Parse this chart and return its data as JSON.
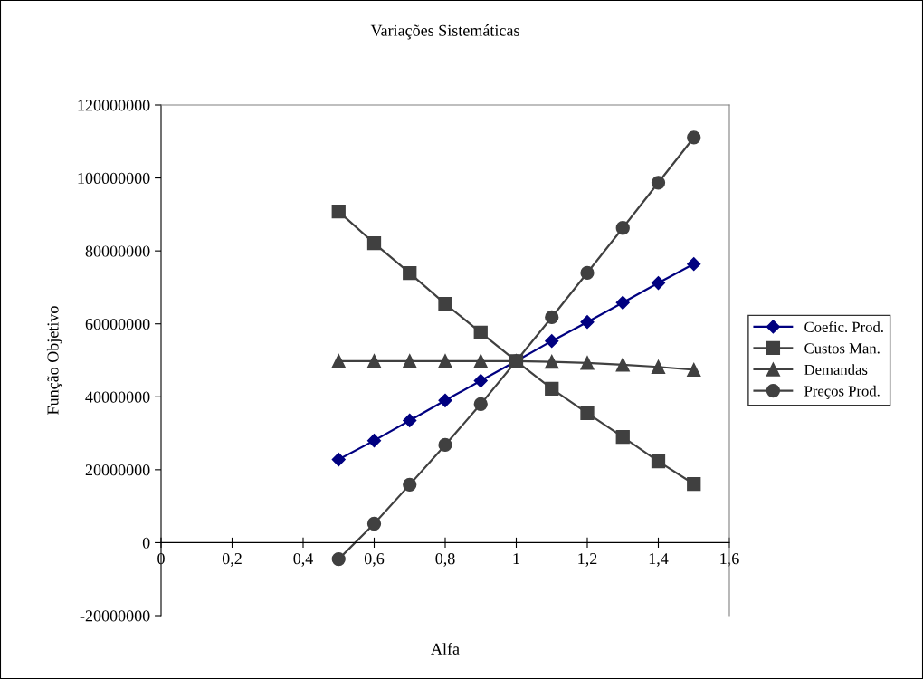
{
  "chart_data": {
    "type": "line",
    "title": "Variações Sistemáticas",
    "xlabel": "Alfa",
    "ylabel": "Função Objetivo",
    "x": [
      0.5,
      0.6,
      0.7,
      0.8,
      0.9,
      1.0,
      1.1,
      1.2,
      1.3,
      1.4,
      1.5
    ],
    "series": [
      {
        "name": "Coefic. Prod.",
        "color": "#000080",
        "marker": "diamond",
        "values": [
          22800000,
          28000000,
          33500000,
          39000000,
          44400000,
          49800000,
          55300000,
          60500000,
          65800000,
          71200000,
          76400000
        ]
      },
      {
        "name": "Custos Man.",
        "color": "#404040",
        "marker": "square",
        "values": [
          90800000,
          82100000,
          73900000,
          65500000,
          57600000,
          49800000,
          42200000,
          35500000,
          29000000,
          22300000,
          16100000
        ]
      },
      {
        "name": "Demandas",
        "color": "#404040",
        "marker": "triangle",
        "values": [
          49800000,
          49800000,
          49800000,
          49800000,
          49800000,
          49800000,
          49600000,
          49300000,
          48800000,
          48200000,
          47400000
        ]
      },
      {
        "name": "Preços Prod.",
        "color": "#404040",
        "marker": "circle",
        "values": [
          -4500000,
          5200000,
          15900000,
          26800000,
          38000000,
          49800000,
          61800000,
          74000000,
          86300000,
          98700000,
          111100000
        ]
      }
    ],
    "xlim": [
      0,
      1.6
    ],
    "xticks": [
      0,
      {
        "value": 0.2,
        "label": "0,2"
      },
      {
        "value": 0.4,
        "label": "0,4"
      },
      {
        "value": 0.6,
        "label": "0,6"
      },
      {
        "value": 0.8,
        "label": "0,8"
      },
      1,
      {
        "value": 1.2,
        "label": "1,2"
      },
      {
        "value": 1.4,
        "label": "1,4"
      },
      {
        "value": 1.6,
        "label": "1,6"
      }
    ],
    "ylim": [
      -20000000,
      120000000
    ],
    "yticks": [
      -20000000,
      0,
      20000000,
      40000000,
      60000000,
      80000000,
      100000000,
      120000000
    ],
    "grid": false,
    "legend": "right",
    "line_style": "solid"
  }
}
